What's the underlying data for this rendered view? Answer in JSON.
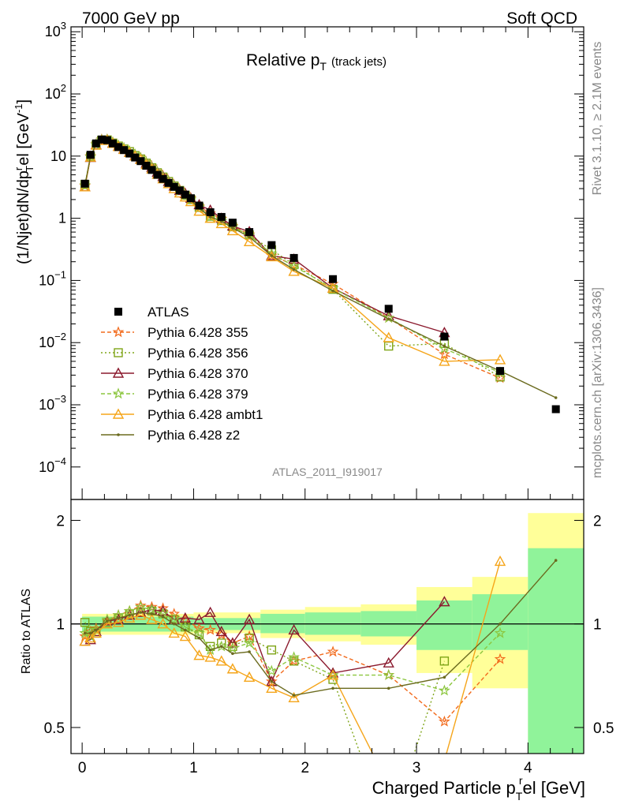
{
  "header": {
    "left": "7000 GeV pp",
    "right": "Soft QCD"
  },
  "side": {
    "rivet": "Rivet 3.1.10, ≥ 2.1M events",
    "mcplots": "mcplots.cern.ch [arXiv:1306.3436]"
  },
  "colors": {
    "ATLAS": "#000000",
    "p355": "#f26b1d",
    "p356": "#7fa518",
    "p370": "#8b1a2e",
    "p379": "#8cc63f",
    "ambt1": "#f5a51a",
    "z2": "#6b6b1f",
    "band_inner": "#90f39a",
    "band_outer": "#ffff99"
  },
  "chart_data": [
    {
      "type": "line",
      "title_main": "Relative p",
      "title_sub": "T",
      "title_tail": "(track jets)",
      "ylabel": "(1/Njet)dN/dp",
      "ylabel_sup": "r",
      "ylabel_sub": "T",
      "ylabel_tail": "el [GeV",
      "ylabel_unit_sup": "-1",
      "ylabel_close": "]",
      "yscale": "log",
      "xlim": [
        -0.1,
        4.5
      ],
      "ylim": [
        3e-05,
        1200
      ],
      "yticks": [
        {
          "v": 1000,
          "base": "10",
          "exp": "3"
        },
        {
          "v": 100,
          "base": "10",
          "exp": "2"
        },
        {
          "v": 10,
          "base": "10",
          "exp": ""
        },
        {
          "v": 1,
          "base": "1",
          "exp": ""
        },
        {
          "v": 0.1,
          "base": "10",
          "exp": "−1"
        },
        {
          "v": 0.01,
          "base": "10",
          "exp": "−2"
        },
        {
          "v": 0.001,
          "base": "10",
          "exp": "−3"
        },
        {
          "v": 0.0001,
          "base": "10",
          "exp": "−4"
        }
      ],
      "watermark": "ATLAS_2011_I919017",
      "legend_position": "left-middle",
      "series": [
        {
          "name": "ATLAS",
          "key": "ATLAS",
          "marker": "square",
          "x": [
            0.025,
            0.075,
            0.125,
            0.175,
            0.225,
            0.275,
            0.325,
            0.375,
            0.425,
            0.475,
            0.525,
            0.575,
            0.625,
            0.675,
            0.725,
            0.775,
            0.825,
            0.875,
            0.925,
            0.975,
            1.05,
            1.15,
            1.25,
            1.35,
            1.5,
            1.7,
            1.9,
            2.25,
            2.75,
            3.25,
            3.75,
            4.25
          ],
          "y": [
            3.6,
            10.5,
            16,
            18.5,
            18,
            16,
            14,
            12.5,
            11,
            9.5,
            8.3,
            7.0,
            6.0,
            5.0,
            4.3,
            3.7,
            3.2,
            2.8,
            2.4,
            2.1,
            1.6,
            1.25,
            1.05,
            0.85,
            0.6,
            0.37,
            0.23,
            0.105,
            0.035,
            0.0125,
            0.0035,
            0.00085
          ]
        },
        {
          "name": "Pythia 6.428 355",
          "key": "p355",
          "marker": "star",
          "dash": "5,3",
          "x": [
            0.025,
            0.075,
            0.125,
            0.175,
            0.225,
            0.275,
            0.325,
            0.375,
            0.425,
            0.475,
            0.525,
            0.575,
            0.625,
            0.675,
            0.725,
            0.775,
            0.825,
            0.875,
            0.925,
            0.975,
            1.05,
            1.15,
            1.25,
            1.35,
            1.5,
            1.7,
            1.9,
            2.25,
            2.75,
            3.25,
            3.75
          ],
          "y": [
            3.3,
            9.9,
            15.5,
            18.5,
            18.5,
            16.7,
            14.8,
            13.4,
            12,
            10.5,
            9.4,
            8.0,
            6.8,
            5.6,
            4.8,
            4.0,
            3.4,
            2.9,
            2.45,
            2.1,
            1.55,
            1.2,
            0.98,
            0.75,
            0.55,
            0.25,
            0.18,
            0.088,
            0.025,
            0.0065,
            0.0027
          ]
        },
        {
          "name": "Pythia 6.428 356",
          "key": "p356",
          "marker": "open-square",
          "dash": "2,3",
          "x": [
            0.025,
            0.075,
            0.125,
            0.175,
            0.225,
            0.275,
            0.325,
            0.375,
            0.425,
            0.475,
            0.525,
            0.575,
            0.625,
            0.675,
            0.725,
            0.775,
            0.825,
            0.875,
            0.925,
            0.975,
            1.05,
            1.15,
            1.25,
            1.35,
            1.5,
            1.7,
            1.9,
            2.25,
            2.75,
            3.25,
            3.75
          ],
          "y": [
            3.5,
            9.8,
            15.0,
            18.0,
            18.2,
            16.2,
            14.5,
            13.0,
            11.8,
            10.2,
            9.0,
            7.7,
            6.5,
            5.4,
            4.6,
            3.9,
            3.3,
            2.8,
            2.35,
            2.0,
            1.5,
            1.08,
            0.92,
            0.73,
            0.54,
            0.31,
            0.18,
            0.072,
            0.0088,
            0.0097,
            0.0028
          ]
        },
        {
          "name": "Pythia 6.428 370",
          "key": "p370",
          "marker": "open-triangle",
          "dash": "",
          "x": [
            0.025,
            0.075,
            0.125,
            0.175,
            0.225,
            0.275,
            0.325,
            0.375,
            0.425,
            0.475,
            0.525,
            0.575,
            0.625,
            0.675,
            0.725,
            0.775,
            0.825,
            0.875,
            0.925,
            0.975,
            1.05,
            1.15,
            1.25,
            1.35,
            1.5,
            1.7,
            1.9,
            2.25,
            2.75,
            3.25
          ],
          "y": [
            3.2,
            9.5,
            15.2,
            18.2,
            18.4,
            16.2,
            14.4,
            13.0,
            11.6,
            10.2,
            9.0,
            7.7,
            6.6,
            5.5,
            4.7,
            3.9,
            3.3,
            2.8,
            2.5,
            2.1,
            1.65,
            1.35,
            1.0,
            0.75,
            0.61,
            0.25,
            0.22,
            0.075,
            0.027,
            0.0145
          ]
        },
        {
          "name": "Pythia 6.428 379",
          "key": "p379",
          "marker": "star",
          "dash": "5,3",
          "x": [
            0.025,
            0.075,
            0.125,
            0.175,
            0.225,
            0.275,
            0.325,
            0.375,
            0.425,
            0.475,
            0.525,
            0.575,
            0.625,
            0.675,
            0.725,
            0.775,
            0.825,
            0.875,
            0.925,
            0.975,
            1.05,
            1.15,
            1.25,
            1.35,
            1.5,
            1.7,
            1.9,
            2.25,
            2.75,
            3.25,
            3.75
          ],
          "y": [
            3.4,
            9.7,
            15.3,
            18.3,
            18.5,
            16.6,
            14.8,
            13.5,
            12.0,
            10.6,
            9.3,
            7.9,
            6.6,
            5.5,
            4.6,
            3.9,
            3.3,
            2.75,
            2.35,
            2.0,
            1.5,
            1.05,
            0.9,
            0.72,
            0.53,
            0.27,
            0.17,
            0.075,
            0.025,
            0.008,
            0.0033
          ]
        },
        {
          "name": "Pythia 6.428 ambt1",
          "key": "ambt1",
          "marker": "open-triangle",
          "dash": "",
          "x": [
            0.025,
            0.075,
            0.125,
            0.175,
            0.225,
            0.275,
            0.325,
            0.375,
            0.425,
            0.475,
            0.525,
            0.575,
            0.625,
            0.675,
            0.725,
            0.775,
            0.825,
            0.875,
            0.925,
            0.975,
            1.05,
            1.15,
            1.25,
            1.35,
            1.5,
            1.7,
            1.9,
            2.25,
            2.75,
            3.25,
            3.75
          ],
          "y": [
            3.2,
            9.6,
            15.0,
            17.8,
            18.0,
            16.0,
            14.2,
            12.8,
            11.4,
            10.0,
            8.8,
            7.3,
            6.2,
            5.1,
            4.3,
            3.6,
            3.0,
            2.55,
            2.2,
            1.85,
            1.3,
            1.0,
            0.82,
            0.63,
            0.42,
            0.24,
            0.14,
            0.075,
            0.012,
            0.005,
            0.0053
          ]
        },
        {
          "name": "Pythia 6.428 z2",
          "key": "z2",
          "marker": "dot",
          "dash": "",
          "x": [
            0.025,
            0.075,
            0.125,
            0.175,
            0.225,
            0.275,
            0.325,
            0.375,
            0.425,
            0.475,
            0.525,
            0.575,
            0.625,
            0.675,
            0.725,
            0.775,
            0.825,
            0.875,
            0.925,
            0.975,
            1.05,
            1.15,
            1.25,
            1.35,
            1.5,
            1.7,
            1.9,
            2.25,
            2.75,
            3.25,
            3.75,
            4.25
          ],
          "y": [
            3.4,
            9.9,
            15.4,
            18.3,
            18.4,
            16.4,
            14.6,
            13.1,
            11.7,
            10.3,
            9.0,
            7.6,
            6.4,
            5.3,
            4.5,
            3.8,
            3.2,
            2.7,
            2.3,
            1.95,
            1.45,
            1.05,
            0.9,
            0.7,
            0.5,
            0.25,
            0.15,
            0.068,
            0.024,
            0.0088,
            0.0035,
            0.0013
          ]
        }
      ]
    },
    {
      "type": "line",
      "ylabel": "Ratio to ATLAS",
      "xlabel_pre": "Charged Particle p",
      "xlabel_sub": "T",
      "xlabel_sup": "r",
      "xlabel_tail": "el [GeV]",
      "xlim": [
        -0.1,
        4.5
      ],
      "ylim": [
        0.42,
        2.3
      ],
      "yscale": "log",
      "xticks": [
        0,
        1,
        2,
        3,
        4
      ],
      "yticks": [
        0.5,
        1,
        2
      ],
      "bands": [
        {
          "x0": 0.0,
          "x1": 1.0,
          "inner": [
            0.95,
            1.05
          ],
          "outer": [
            0.93,
            1.07
          ]
        },
        {
          "x0": 1.0,
          "x1": 1.6,
          "inner": [
            0.96,
            1.04
          ],
          "outer": [
            0.94,
            1.08
          ]
        },
        {
          "x0": 1.6,
          "x1": 2.0,
          "inner": [
            0.94,
            1.07
          ],
          "outer": [
            0.91,
            1.1
          ]
        },
        {
          "x0": 2.0,
          "x1": 2.5,
          "inner": [
            0.93,
            1.08
          ],
          "outer": [
            0.89,
            1.12
          ]
        },
        {
          "x0": 2.5,
          "x1": 3.0,
          "inner": [
            0.92,
            1.09
          ],
          "outer": [
            0.87,
            1.14
          ]
        },
        {
          "x0": 3.0,
          "x1": 3.5,
          "inner": [
            0.84,
            1.17
          ],
          "outer": [
            0.72,
            1.28
          ]
        },
        {
          "x0": 3.5,
          "x1": 4.0,
          "inner": [
            0.84,
            1.22
          ],
          "outer": [
            0.65,
            1.37
          ]
        },
        {
          "x0": 4.0,
          "x1": 4.5,
          "inner": [
            0.36,
            1.66
          ],
          "outer": [
            0.3,
            2.1
          ]
        }
      ],
      "series": [
        {
          "key": "p355",
          "marker": "star",
          "dash": "5,3",
          "x": [
            0.025,
            0.075,
            0.125,
            0.225,
            0.325,
            0.425,
            0.525,
            0.625,
            0.725,
            0.825,
            0.925,
            1.05,
            1.15,
            1.25,
            1.35,
            1.5,
            1.7,
            1.9,
            2.25,
            2.75,
            3.25,
            3.75
          ],
          "y": [
            0.92,
            0.95,
            0.97,
            1.02,
            1.06,
            1.09,
            1.13,
            1.12,
            1.11,
            1.07,
            1.03,
            0.97,
            0.96,
            0.93,
            0.88,
            0.92,
            0.68,
            0.78,
            0.83,
            0.71,
            0.52,
            0.79
          ]
        },
        {
          "key": "p356",
          "marker": "open-square",
          "dash": "2,3",
          "x": [
            0.025,
            0.075,
            0.125,
            0.225,
            0.325,
            0.425,
            0.525,
            0.625,
            0.725,
            0.825,
            0.925,
            1.05,
            1.15,
            1.25,
            1.35,
            1.5,
            1.7,
            1.9,
            2.25,
            2.75,
            3.25
          ],
          "y": [
            1.01,
            0.95,
            0.94,
            1.01,
            1.04,
            1.07,
            1.08,
            1.09,
            1.07,
            1.03,
            0.98,
            0.93,
            0.86,
            0.88,
            0.86,
            0.91,
            0.84,
            0.78,
            0.69,
            0.25,
            0.78
          ]
        },
        {
          "key": "p370",
          "marker": "open-triangle",
          "dash": "",
          "x": [
            0.025,
            0.075,
            0.125,
            0.225,
            0.325,
            0.425,
            0.525,
            0.625,
            0.725,
            0.825,
            0.925,
            1.05,
            1.15,
            1.25,
            1.35,
            1.5,
            1.7,
            1.9,
            2.25,
            2.75,
            3.25
          ],
          "y": [
            0.89,
            0.9,
            0.95,
            1.02,
            1.03,
            1.06,
            1.08,
            1.1,
            1.09,
            1.03,
            1.04,
            1.03,
            1.08,
            0.95,
            0.88,
            1.03,
            0.68,
            0.96,
            0.72,
            0.77,
            1.16
          ]
        },
        {
          "key": "p379",
          "marker": "star",
          "dash": "5,3",
          "x": [
            0.025,
            0.075,
            0.125,
            0.225,
            0.325,
            0.425,
            0.525,
            0.625,
            0.725,
            0.825,
            0.925,
            1.05,
            1.15,
            1.25,
            1.35,
            1.5,
            1.7,
            1.9,
            2.25,
            2.75,
            3.25,
            3.75
          ],
          "y": [
            0.94,
            0.92,
            0.96,
            1.03,
            1.06,
            1.09,
            1.12,
            1.1,
            1.07,
            1.03,
            0.98,
            0.94,
            0.84,
            0.86,
            0.85,
            0.88,
            0.73,
            0.8,
            0.71,
            0.71,
            0.64,
            0.94
          ]
        },
        {
          "key": "ambt1",
          "marker": "open-triangle",
          "dash": "",
          "x": [
            0.025,
            0.075,
            0.125,
            0.225,
            0.325,
            0.425,
            0.525,
            0.625,
            0.725,
            0.825,
            0.925,
            1.05,
            1.15,
            1.25,
            1.35,
            1.5,
            1.7,
            1.9,
            2.25,
            2.75,
            3.25,
            3.75
          ],
          "y": [
            0.89,
            0.91,
            0.94,
            1.0,
            1.01,
            1.04,
            1.06,
            1.03,
            1.0,
            0.94,
            0.92,
            0.81,
            0.8,
            0.78,
            0.74,
            0.7,
            0.65,
            0.61,
            0.71,
            0.34,
            0.4,
            1.52
          ]
        },
        {
          "key": "z2",
          "marker": "dot",
          "dash": "",
          "x": [
            0.025,
            0.075,
            0.125,
            0.225,
            0.325,
            0.425,
            0.525,
            0.625,
            0.725,
            0.825,
            0.925,
            1.05,
            1.15,
            1.25,
            1.35,
            1.5,
            1.7,
            1.9,
            2.25,
            2.75,
            3.25,
            3.75,
            4.25
          ],
          "y": [
            0.94,
            0.94,
            0.96,
            1.02,
            1.04,
            1.06,
            1.08,
            1.07,
            1.05,
            1.0,
            0.96,
            0.91,
            0.84,
            0.86,
            0.82,
            0.83,
            0.68,
            0.62,
            0.65,
            0.65,
            0.7,
            1.0,
            1.53
          ]
        }
      ]
    }
  ]
}
